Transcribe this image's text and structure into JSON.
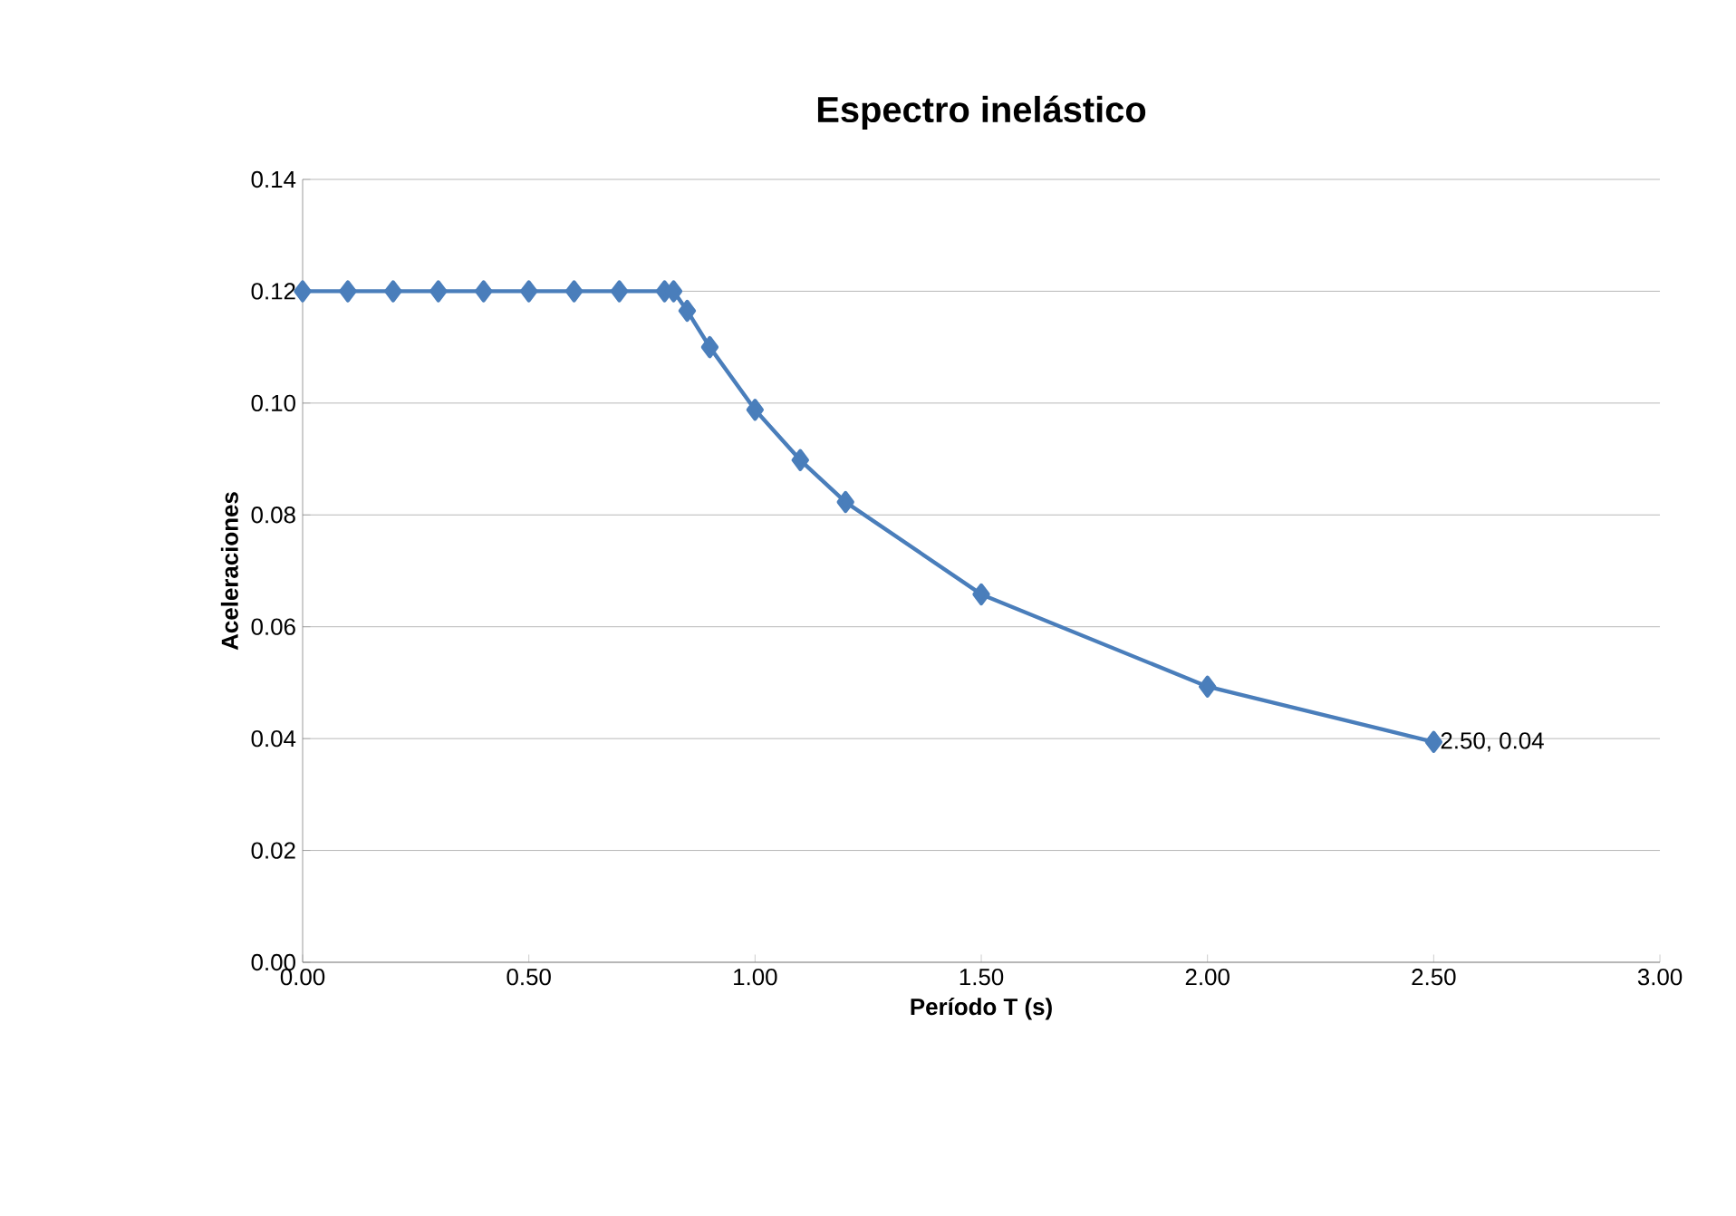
{
  "chart_data": {
    "type": "line",
    "title": "Espectro inelástico",
    "xlabel": "Período T (s)",
    "ylabel": "Aceleraciones",
    "x": [
      0,
      0.1,
      0.2,
      0.3,
      0.4,
      0.5,
      0.6,
      0.7,
      0.8,
      0.82,
      0.85,
      0.9,
      1.0,
      1.1,
      1.2,
      1.5,
      2.0,
      2.5
    ],
    "series": [
      {
        "color": "#4a7ebb",
        "values": [
          0.12,
          0.12,
          0.12,
          0.12,
          0.12,
          0.12,
          0.12,
          0.12,
          0.12,
          0.12,
          0.1165,
          0.11,
          0.0988,
          0.0898,
          0.0823,
          0.0658,
          0.0493,
          0.0394
        ]
      }
    ],
    "xlim": [
      0,
      3
    ],
    "xticks": [
      {
        "value": 0,
        "label": "0.00"
      },
      {
        "value": 0.5,
        "label": "0.50"
      },
      {
        "value": 1,
        "label": "1.00"
      },
      {
        "value": 1.5,
        "label": "1.50"
      },
      {
        "value": 2,
        "label": "2.00"
      },
      {
        "value": 2.5,
        "label": "2.50"
      },
      {
        "value": 3,
        "label": "3.00"
      }
    ],
    "ylim": [
      0,
      0.14
    ],
    "yticks": [
      {
        "value": 0,
        "label": "0.00"
      },
      {
        "value": 0.02,
        "label": "0.02"
      },
      {
        "value": 0.04,
        "label": "0.04"
      },
      {
        "value": 0.06,
        "label": "0.06"
      },
      {
        "value": 0.08,
        "label": "0.08"
      },
      {
        "value": 0.1,
        "label": "0.10"
      },
      {
        "value": 0.12,
        "label": "0.12"
      },
      {
        "value": 0.14,
        "label": "0.14"
      }
    ],
    "grid": "y",
    "marker": "diamond",
    "line_style": "solid",
    "annotations": [
      {
        "text": "2.50, 0.04",
        "x": 2.5,
        "y": 0.0394
      }
    ]
  }
}
